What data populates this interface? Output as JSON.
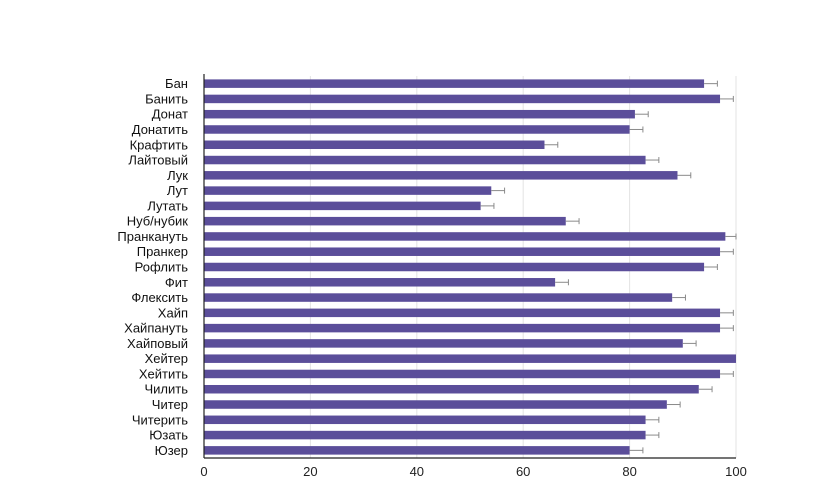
{
  "chart_data": {
    "type": "bar",
    "orientation": "horizontal",
    "title": "",
    "xlabel": "",
    "ylabel": "",
    "xlim": [
      0,
      100
    ],
    "xticks": [
      0,
      20,
      40,
      60,
      80,
      100
    ],
    "grid": true,
    "error_bars": true,
    "bar_color": "#5b4e9a",
    "grid_color": "#e3e3e3",
    "categories": [
      "Бан",
      "Банить",
      "Донат",
      "Донатить",
      "Крафтить",
      "Лайтовый",
      "Лук",
      "Лут",
      "Лутать",
      "Нуб/нубик",
      "Пранкануть",
      "Пранкер",
      "Рофлить",
      "Фит",
      "Флексить",
      "Хайп",
      "Хайпануть",
      "Хайповый",
      "Хейтер",
      "Хейтить",
      "Чилить",
      "Читер",
      "Читерить",
      "Юзать",
      "Юзер"
    ],
    "values": [
      94,
      97,
      81,
      80,
      64,
      83,
      89,
      54,
      52,
      68,
      98,
      97,
      94,
      66,
      88,
      97,
      97,
      90,
      100,
      97,
      93,
      87,
      83,
      83,
      80
    ],
    "errors": [
      2.5,
      2.5,
      2.5,
      2.5,
      2.5,
      2.5,
      2.5,
      2.5,
      2.5,
      2.5,
      2.5,
      2.5,
      2.5,
      2.5,
      2.5,
      2.5,
      2.5,
      2.5,
      0,
      2.5,
      2.5,
      2.5,
      2.5,
      2.5,
      2.5
    ]
  }
}
